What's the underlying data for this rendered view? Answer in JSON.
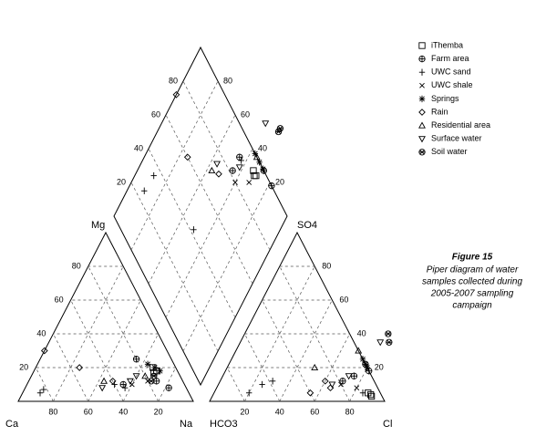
{
  "chart_data": {
    "type": "piper",
    "cation_corners": {
      "left": "Ca",
      "right": "Na",
      "top": "Mg"
    },
    "anion_corners": {
      "left": "HCO3",
      "right": "Cl",
      "top": "SO4"
    },
    "ticks": [
      20,
      40,
      60,
      80
    ],
    "lim": [
      0,
      100
    ],
    "grid": true,
    "legend": "top-right",
    "figure_label": "Figure 15",
    "caption": [
      "Piper diagram of water",
      "samples collected during",
      "2005-2007 sampling",
      "campaign"
    ],
    "series": [
      {
        "name": "iThemba",
        "marker": "square",
        "color": "#000000",
        "ca": [
          12,
          14,
          13
        ],
        "mg": [
          18,
          17,
          20
        ],
        "cl": [
          90,
          88,
          91
        ],
        "so4": [
          4,
          5,
          3
        ]
      },
      {
        "name": "Farm area",
        "marker": "circle-plus",
        "color": "#000000",
        "ca": [
          15,
          10,
          20,
          35
        ],
        "mg": [
          12,
          8,
          25,
          10
        ],
        "cl": [
          78,
          82,
          70,
          75
        ],
        "so4": [
          22,
          18,
          12,
          15
        ]
      },
      {
        "name": "UWC sand",
        "marker": "plus",
        "color": "#000000",
        "ca": [
          85,
          82,
          40,
          35
        ],
        "mg": [
          5,
          7,
          10,
          8
        ],
        "cl": [
          20,
          25,
          30,
          85
        ],
        "so4": [
          5,
          10,
          12,
          5
        ]
      },
      {
        "name": "UWC shale",
        "marker": "x",
        "color": "#000000",
        "ca": [
          30,
          20
        ],
        "mg": [
          10,
          12
        ],
        "cl": [
          70,
          80
        ],
        "so4": [
          10,
          8
        ]
      },
      {
        "name": "Springs",
        "marker": "asterisk",
        "color": "#000000",
        "ca": [
          12,
          10,
          15
        ],
        "mg": [
          20,
          18,
          22
        ],
        "cl": [
          75,
          78,
          80
        ],
        "so4": [
          25,
          22,
          20
        ]
      },
      {
        "name": "Rain",
        "marker": "diamond",
        "color": "#000000",
        "ca": [
          70,
          55,
          40
        ],
        "mg": [
          30,
          20,
          12
        ],
        "cl": [
          60,
          55,
          65
        ],
        "so4": [
          12,
          5,
          8
        ]
      },
      {
        "name": "Residential area",
        "marker": "triangle",
        "color": "#000000",
        "ca": [
          20,
          45
        ],
        "mg": [
          15,
          12
        ],
        "cl": [
          70,
          50
        ],
        "so4": [
          30,
          20
        ]
      },
      {
        "name": "Surface water",
        "marker": "triangle-down",
        "color": "#000000",
        "ca": [
          48,
          30,
          25
        ],
        "mg": [
          8,
          12,
          15
        ],
        "cl": [
          65,
          72,
          80
        ],
        "so4": [
          10,
          15,
          35
        ]
      },
      {
        "name": "Soil water",
        "marker": "circle-cross",
        "color": "#000000",
        "ca": [
          15,
          18
        ],
        "mg": [
          15,
          12
        ],
        "cl": [
          82,
          85
        ],
        "so4": [
          40,
          35
        ]
      }
    ]
  }
}
